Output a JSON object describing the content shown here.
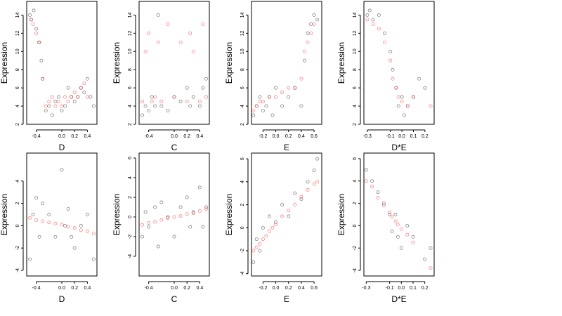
{
  "chart_data": [
    {
      "type": "scatter",
      "xlabel": "D",
      "ylabel": "Expression",
      "xlim": [
        -0.55,
        0.55
      ],
      "ylim": [
        2,
        15.5
      ],
      "xticks": [
        "-0.4",
        "0.0",
        "0.2",
        "0.4"
      ],
      "xtick_values": [
        -0.4,
        0,
        0.2,
        0.4
      ],
      "yticks": [
        "2",
        "4",
        "6",
        "8",
        "10",
        "12",
        "14"
      ],
      "ytick_values": [
        2,
        4,
        6,
        8,
        10,
        12,
        14
      ],
      "series": [
        {
          "color": "#000000",
          "x": [
            -0.5,
            -0.48,
            -0.44,
            -0.4,
            -0.36,
            -0.32,
            -0.3,
            -0.25,
            -0.2,
            -0.15,
            -0.1,
            -0.05,
            0,
            0.05,
            0.1,
            0.15,
            0.2,
            0.25,
            0.3,
            0.35,
            0.4,
            0.45,
            0.5
          ],
          "y": [
            14,
            13.5,
            14.5,
            12.5,
            11,
            9,
            7,
            3.5,
            4,
            3,
            4.5,
            5,
            3.5,
            4,
            6,
            5,
            4.5,
            5,
            6,
            5.5,
            7,
            5,
            4
          ]
        },
        {
          "color": "#ff0000",
          "x": [
            -0.48,
            -0.45,
            -0.4,
            -0.35,
            -0.3,
            -0.25,
            -0.2,
            -0.15,
            -0.1,
            -0.05,
            0,
            0.05,
            0.1,
            0.15,
            0.2,
            0.25,
            0.3,
            0.35,
            0.4
          ],
          "y": [
            13.5,
            13,
            12,
            11,
            7,
            4,
            4.5,
            5,
            4,
            4.5,
            4,
            5,
            4.5,
            5,
            5.5,
            5,
            6,
            6.5,
            5
          ]
        }
      ]
    },
    {
      "type": "scatter",
      "xlabel": "C",
      "ylabel": "Expression",
      "xlim": [
        -0.55,
        0.55
      ],
      "ylim": [
        2,
        15.5
      ],
      "xticks": [
        "-0.4",
        "0.0",
        "0.2",
        "0.4"
      ],
      "xtick_values": [
        -0.4,
        0,
        0.2,
        0.4
      ],
      "yticks": [
        "2",
        "4",
        "6",
        "8",
        "10",
        "12",
        "14"
      ],
      "ytick_values": [
        2,
        4,
        6,
        8,
        10,
        12,
        14
      ],
      "series": [
        {
          "color": "#000000",
          "x": [
            -0.5,
            -0.45,
            -0.4,
            -0.35,
            -0.3,
            -0.25,
            -0.2,
            -0.1,
            0,
            0.1,
            0.2,
            0.25,
            0.3,
            0.4,
            0.45,
            0.5
          ],
          "y": [
            3,
            4,
            3.5,
            5,
            4,
            14,
            4,
            3.5,
            5,
            4.5,
            6,
            4,
            5,
            4,
            6,
            7
          ]
        },
        {
          "color": "#ff0000",
          "x": [
            -0.5,
            -0.45,
            -0.4,
            -0.35,
            -0.3,
            -0.25,
            -0.2,
            -0.1,
            0,
            0.1,
            0.2,
            0.25,
            0.3,
            0.4,
            0.45,
            0.5
          ],
          "y": [
            4.5,
            10,
            12,
            4.5,
            5,
            11,
            4.5,
            13,
            5,
            11,
            4.5,
            12,
            10,
            4.5,
            13,
            5
          ]
        }
      ]
    },
    {
      "type": "scatter",
      "xlabel": "E",
      "ylabel": "Expression",
      "xlim": [
        -0.38,
        0.72
      ],
      "ylim": [
        2,
        15.5
      ],
      "xticks": [
        "-0.2",
        "0.0",
        "0.2",
        "0.4",
        "0.6"
      ],
      "xtick_values": [
        -0.2,
        0,
        0.2,
        0.4,
        0.6
      ],
      "yticks": [
        "2",
        "4",
        "6",
        "8",
        "10",
        "12",
        "14"
      ],
      "ytick_values": [
        2,
        4,
        6,
        8,
        10,
        12,
        14
      ],
      "series": [
        {
          "color": "#000000",
          "x": [
            -0.35,
            -0.3,
            -0.25,
            -0.2,
            -0.15,
            -0.1,
            -0.05,
            0,
            0.1,
            0.2,
            0.3,
            0.4,
            0.45,
            0.5,
            0.55,
            0.6,
            0.65
          ],
          "y": [
            3,
            4,
            5,
            3.5,
            4,
            5,
            3,
            6,
            4,
            5,
            6,
            4,
            9,
            12,
            13,
            14,
            13.5
          ]
        },
        {
          "color": "#ff0000",
          "x": [
            -0.35,
            -0.3,
            -0.25,
            -0.2,
            -0.1,
            0,
            0.1,
            0.2,
            0.3,
            0.4,
            0.45,
            0.5,
            0.55,
            0.6
          ],
          "y": [
            3.5,
            4,
            4.5,
            4.5,
            5,
            5,
            5.5,
            6,
            6,
            7,
            10,
            11,
            12,
            13
          ]
        }
      ]
    },
    {
      "type": "scatter",
      "xlabel": "D*E",
      "ylabel": "Expression",
      "xlim": [
        -0.33,
        0.28
      ],
      "ylim": [
        2,
        15.5
      ],
      "xticks": [
        "-0.3",
        "-0.1",
        "0.0",
        "0.1",
        "0.2"
      ],
      "xtick_values": [
        -0.3,
        -0.1,
        0,
        0.1,
        0.2
      ],
      "yticks": [
        "2",
        "4",
        "6",
        "8",
        "10",
        "12",
        "14"
      ],
      "ytick_values": [
        2,
        4,
        6,
        8,
        10,
        12,
        14
      ],
      "series": [
        {
          "color": "#000000",
          "x": [
            -0.3,
            -0.28,
            -0.25,
            -0.2,
            -0.15,
            -0.1,
            -0.08,
            -0.05,
            -0.03,
            0,
            0.02,
            0.05,
            0.1,
            0.15,
            0.2
          ],
          "y": [
            14,
            14.5,
            13.5,
            14,
            12,
            10,
            8,
            6,
            4,
            5,
            3,
            4,
            5,
            7,
            6
          ]
        },
        {
          "color": "#ff0000",
          "x": [
            -0.3,
            -0.25,
            -0.2,
            -0.15,
            -0.1,
            -0.08,
            -0.05,
            -0.03,
            0,
            0.05,
            0.1,
            0.25
          ],
          "y": [
            13.5,
            13,
            12.5,
            11,
            9,
            7,
            6,
            5,
            4.5,
            4,
            5,
            4
          ]
        }
      ]
    },
    {
      "type": "scatter",
      "xlabel": "D",
      "ylabel": "Expression",
      "xlim": [
        -0.55,
        0.55
      ],
      "ylim": [
        -4.5,
        6.5
      ],
      "xticks": [
        "-0.4",
        "0.0",
        "0.2",
        "0.4"
      ],
      "xtick_values": [
        -0.4,
        0,
        0.2,
        0.4
      ],
      "yticks": [
        "-4",
        "-2",
        "0",
        "2",
        "4"
      ],
      "ytick_values": [
        -4,
        -2,
        0,
        2,
        4
      ],
      "series": [
        {
          "color": "#000000",
          "x": [
            -0.5,
            -0.45,
            -0.4,
            -0.35,
            -0.3,
            -0.2,
            -0.1,
            0,
            0.05,
            0.1,
            0.15,
            0.2,
            0.3,
            0.4,
            0.5
          ],
          "y": [
            -3,
            1,
            2.5,
            -1,
            2,
            1,
            -1,
            5,
            0,
            1.5,
            -1,
            -2,
            0,
            1,
            -3
          ]
        },
        {
          "color": "#ff0000",
          "x": [
            -0.5,
            -0.4,
            -0.3,
            -0.2,
            -0.1,
            0,
            0.1,
            0.2,
            0.3,
            0.4,
            0.5
          ],
          "y": [
            0.7,
            0.5,
            0.4,
            0.3,
            0.2,
            0.1,
            -0.1,
            -0.2,
            -0.4,
            -0.5,
            -0.7
          ]
        }
      ]
    },
    {
      "type": "scatter",
      "xlabel": "C",
      "ylabel": "Expression",
      "xlim": [
        -0.55,
        0.55
      ],
      "ylim": [
        -6,
        6.5
      ],
      "xticks": [
        "-0.4",
        "0.0",
        "0.2",
        "0.4"
      ],
      "xtick_values": [
        -0.4,
        0,
        0.2,
        0.4
      ],
      "yticks": [
        "-4",
        "-2",
        "0",
        "2",
        "4",
        "6"
      ],
      "ytick_values": [
        -4,
        -2,
        0,
        2,
        4,
        6
      ],
      "series": [
        {
          "color": "#000000",
          "x": [
            -0.5,
            -0.45,
            -0.4,
            -0.3,
            -0.25,
            -0.2,
            -0.1,
            0,
            0.1,
            0.2,
            0.25,
            0.3,
            0.4,
            0.45,
            0.5
          ],
          "y": [
            -2,
            0.5,
            -1,
            1,
            -3,
            1.5,
            0,
            -2,
            1,
            2,
            -1,
            0.5,
            3,
            -1,
            1
          ]
        },
        {
          "color": "#ff0000",
          "x": [
            -0.5,
            -0.4,
            -0.3,
            -0.2,
            -0.1,
            0,
            0.1,
            0.2,
            0.3,
            0.4,
            0.5
          ],
          "y": [
            -0.8,
            -0.6,
            -0.5,
            -0.3,
            -0.1,
            0,
            0.1,
            0.3,
            0.4,
            0.6,
            0.8
          ]
        }
      ]
    },
    {
      "type": "scatter",
      "xlabel": "E",
      "ylabel": "Expression",
      "xlim": [
        -0.38,
        0.72
      ],
      "ylim": [
        -4.2,
        6.5
      ],
      "xticks": [
        "-0.2",
        "0.0",
        "0.2",
        "0.4",
        "0.6"
      ],
      "xtick_values": [
        -0.2,
        0,
        0.2,
        0.4,
        0.6
      ],
      "yticks": [
        "-4",
        "-2",
        "0",
        "2",
        "4",
        "6"
      ],
      "ytick_values": [
        -4,
        -2,
        0,
        2,
        4,
        6
      ],
      "series": [
        {
          "color": "#000000",
          "x": [
            -0.35,
            -0.3,
            -0.25,
            -0.2,
            -0.1,
            0,
            0.1,
            0.2,
            0.3,
            0.4,
            0.5,
            0.6,
            0.65
          ],
          "y": [
            -3,
            -1,
            -2,
            0,
            1,
            0.5,
            2,
            1,
            3,
            2.5,
            4,
            5,
            6
          ]
        },
        {
          "color": "#ff0000",
          "x": [
            -0.35,
            -0.3,
            -0.25,
            -0.2,
            -0.15,
            -0.1,
            -0.05,
            0,
            0.1,
            0.2,
            0.3,
            0.4,
            0.5,
            0.6,
            0.65
          ],
          "y": [
            -2,
            -1.7,
            -1.4,
            -1,
            -0.7,
            -0.3,
            0,
            0.3,
            1,
            1.5,
            2,
            2.7,
            3.3,
            3.8,
            4
          ]
        }
      ]
    },
    {
      "type": "scatter",
      "xlabel": "D*E",
      "ylabel": "Expression",
      "xlim": [
        -0.32,
        0.28
      ],
      "ylim": [
        -4.5,
        6.5
      ],
      "xticks": [
        "-0.3",
        "-0.1",
        "0.0",
        "0.1",
        "0.2"
      ],
      "xtick_values": [
        -0.3,
        -0.1,
        0,
        0.1,
        0.2
      ],
      "yticks": [
        "-4",
        "-2",
        "0",
        "2",
        "4",
        "6"
      ],
      "ytick_values": [
        -4,
        -2,
        0,
        2,
        4,
        6
      ],
      "series": [
        {
          "color": "#000000",
          "x": [
            -0.3,
            -0.25,
            -0.2,
            -0.15,
            -0.1,
            -0.08,
            -0.05,
            -0.03,
            0,
            0.05,
            0.1,
            0.2,
            0.25
          ],
          "y": [
            5,
            4,
            3,
            2,
            1,
            -0.5,
            1,
            -1,
            -2,
            0,
            -1,
            -3,
            -2
          ]
        },
        {
          "color": "#ff0000",
          "x": [
            -0.3,
            -0.25,
            -0.2,
            -0.15,
            -0.1,
            -0.08,
            -0.05,
            -0.03,
            0,
            0.05,
            0.1,
            0.25
          ],
          "y": [
            4,
            3.5,
            2.5,
            1.8,
            1.2,
            0.8,
            0.4,
            0.1,
            -0.3,
            -0.8,
            -1.5,
            -3.8
          ]
        }
      ]
    }
  ]
}
